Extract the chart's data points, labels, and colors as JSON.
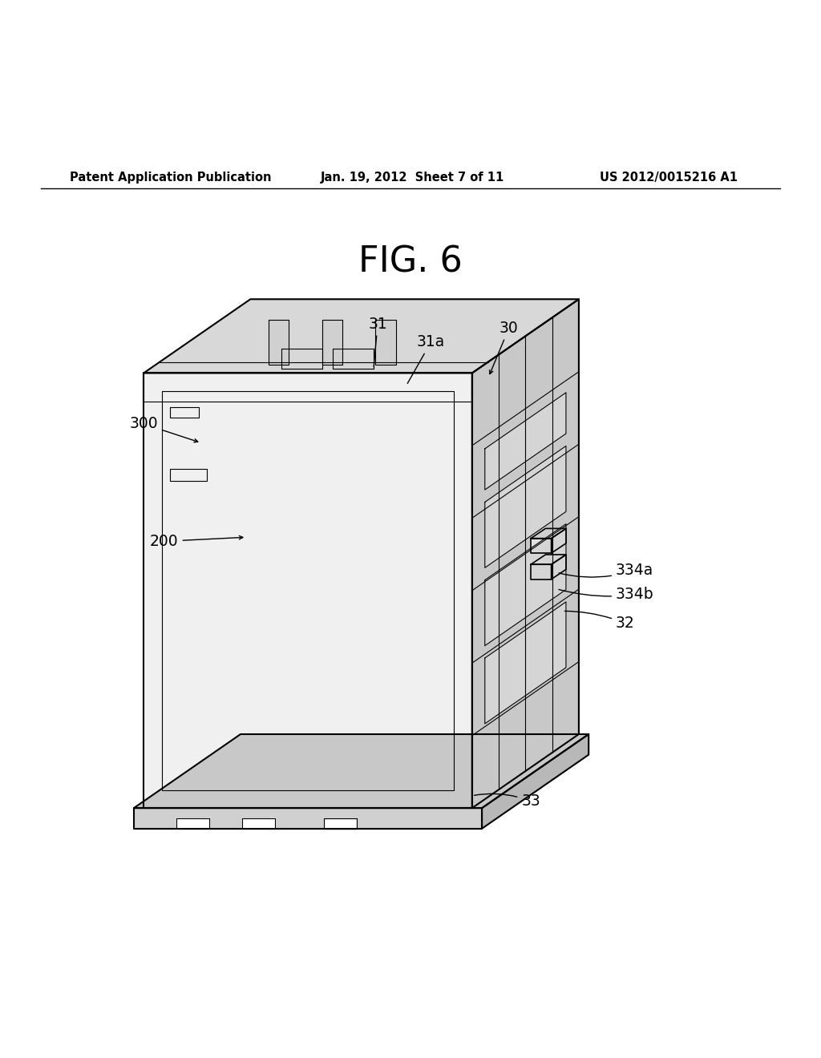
{
  "bg_color": "#ffffff",
  "header_left": "Patent Application Publication",
  "header_mid": "Jan. 19, 2012  Sheet 7 of 11",
  "header_right": "US 2012/0015216 A1",
  "fig_label": "FIG. 6",
  "line_color": "#000000",
  "lw_main": 1.5,
  "lw_thin": 0.8,
  "lw_medium": 1.2
}
